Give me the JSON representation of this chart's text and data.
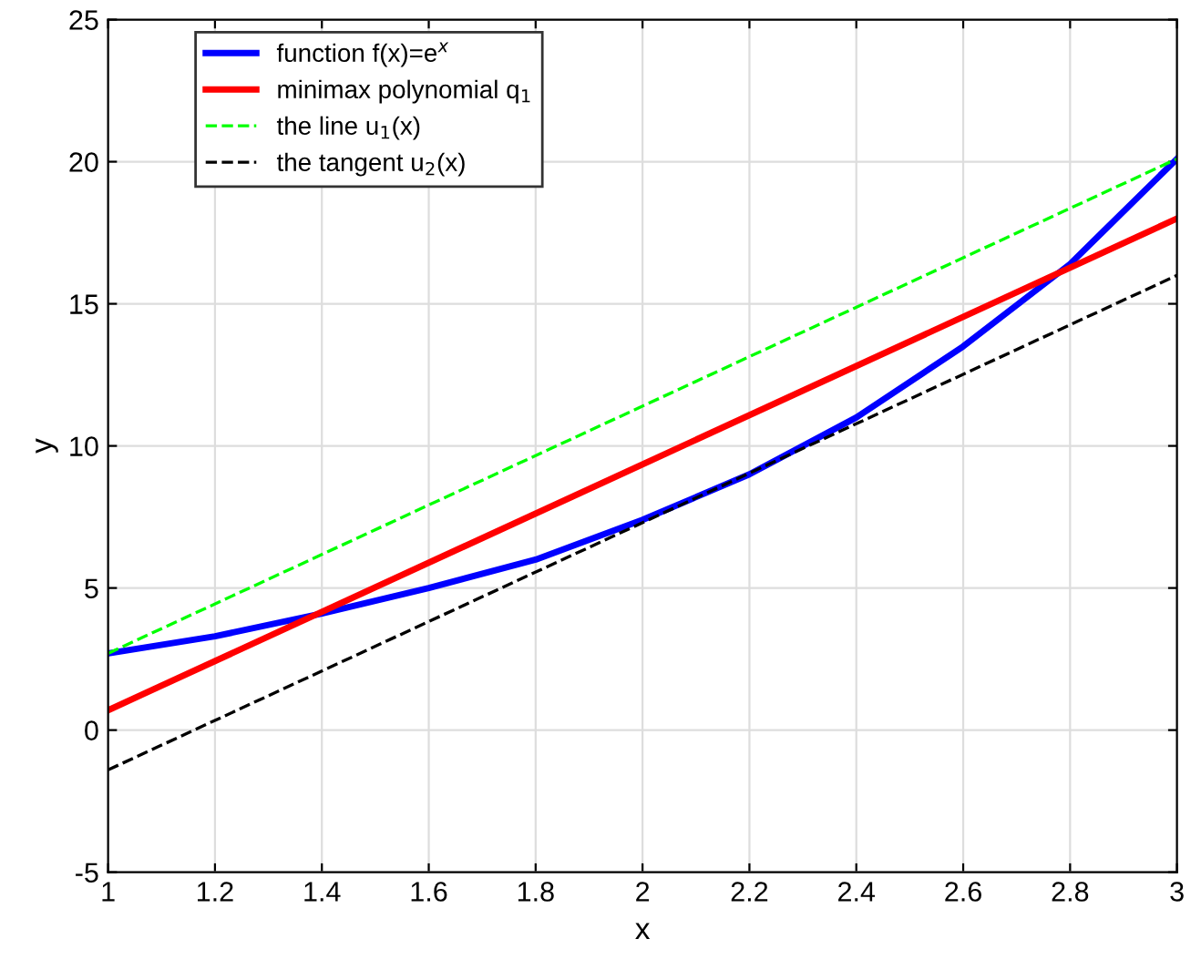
{
  "chart_data": {
    "type": "line",
    "xlabel": "x",
    "ylabel": "y",
    "series": [
      {
        "name": "function f(x)=e$^{x}$",
        "color": "#0000ff",
        "x": [
          1,
          1.2,
          1.4,
          1.6,
          1.8,
          2,
          2.2,
          2.4,
          2.6,
          2.8,
          3
        ],
        "values": [
          2.7,
          3.3,
          4.1,
          5.0,
          6.0,
          7.4,
          9.0,
          11.0,
          13.5,
          16.4,
          20.1
        ]
      },
      {
        "name": "minimax polynomial q$_{1}$",
        "color": "#ff0000",
        "x": [
          1,
          3
        ],
        "values": [
          0.7,
          18.0
        ]
      },
      {
        "name": "the line u$_{1}$(x)",
        "color": "#00ff00",
        "x": [
          1,
          3
        ],
        "values": [
          2.7,
          20.1
        ],
        "line_style": "dashed"
      },
      {
        "name": "the tangent u$_{2}$(x)",
        "color": "#000000",
        "x": [
          1,
          3
        ],
        "values": [
          -1.4,
          16.0
        ],
        "line_style": "dashed"
      }
    ],
    "xlim": [
      1,
      3
    ],
    "ylim": [
      -5,
      25
    ],
    "xticks": [
      1,
      1.2,
      1.4,
      1.6,
      1.8,
      2,
      2.2,
      2.4,
      2.6,
      2.8,
      3
    ],
    "yticks": [
      -5,
      0,
      5,
      10,
      15,
      20,
      25
    ],
    "grid": true,
    "legend": "top left"
  }
}
